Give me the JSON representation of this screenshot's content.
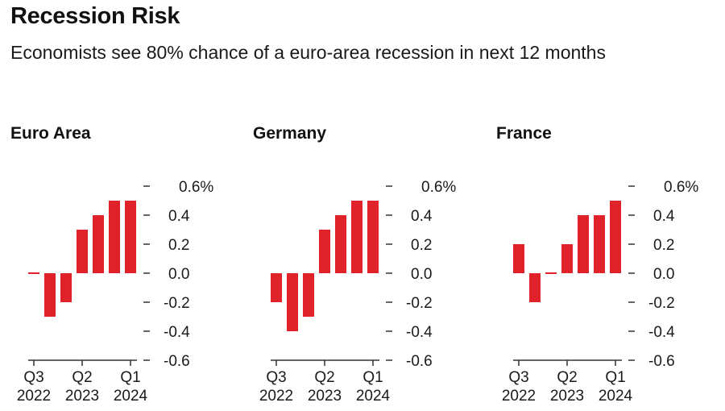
{
  "header": {
    "title": "Recession Risk",
    "subtitle": "Economists see 80% chance of a euro-area recession in next 12 months"
  },
  "colors": {
    "bar": "#e0232b",
    "axis": "#333333",
    "text": "#1a1a1a"
  },
  "chart_data": [
    {
      "type": "bar",
      "title": "Euro Area",
      "categories": [
        "Q3 2022",
        "Q4 2022",
        "Q1 2023",
        "Q2 2023",
        "Q3 2023",
        "Q4 2023",
        "Q1 2024"
      ],
      "values": [
        0.0,
        -0.3,
        -0.2,
        0.3,
        0.4,
        0.5,
        0.5
      ],
      "x_tick_labels": [
        {
          "index": 0,
          "line1": "Q3",
          "line2": "2022"
        },
        {
          "index": 3,
          "line1": "Q2",
          "line2": "2023"
        },
        {
          "index": 6,
          "line1": "Q1",
          "line2": "2024"
        }
      ],
      "y_ticks": [
        0.6,
        0.4,
        0.2,
        0.0,
        -0.2,
        -0.4,
        -0.6
      ],
      "y_tick_labels": [
        "0.6%",
        "0.4",
        "0.2",
        "0.0",
        "-0.2",
        "-0.4",
        "-0.6"
      ],
      "ylim": [
        -0.6,
        0.6
      ],
      "xlabel": "",
      "ylabel": "",
      "grid": false,
      "y_axis_side": "right",
      "unit": "%"
    },
    {
      "type": "bar",
      "title": "Germany",
      "categories": [
        "Q3 2022",
        "Q4 2022",
        "Q1 2023",
        "Q2 2023",
        "Q3 2023",
        "Q4 2023",
        "Q1 2024"
      ],
      "values": [
        -0.2,
        -0.4,
        -0.3,
        0.3,
        0.4,
        0.5,
        0.5
      ],
      "x_tick_labels": [
        {
          "index": 0,
          "line1": "Q3",
          "line2": "2022"
        },
        {
          "index": 3,
          "line1": "Q2",
          "line2": "2023"
        },
        {
          "index": 6,
          "line1": "Q1",
          "line2": "2024"
        }
      ],
      "y_ticks": [
        0.6,
        0.4,
        0.2,
        0.0,
        -0.2,
        -0.4,
        -0.6
      ],
      "y_tick_labels": [
        "0.6%",
        "0.4",
        "0.2",
        "0.0",
        "-0.2",
        "-0.4",
        "-0.6"
      ],
      "ylim": [
        -0.6,
        0.6
      ],
      "xlabel": "",
      "ylabel": "",
      "grid": false,
      "y_axis_side": "right",
      "unit": "%"
    },
    {
      "type": "bar",
      "title": "France",
      "categories": [
        "Q3 2022",
        "Q4 2022",
        "Q1 2023",
        "Q2 2023",
        "Q3 2023",
        "Q4 2023",
        "Q1 2024"
      ],
      "values": [
        0.2,
        -0.2,
        0.0,
        0.2,
        0.4,
        0.4,
        0.5
      ],
      "x_tick_labels": [
        {
          "index": 0,
          "line1": "Q3",
          "line2": "2022"
        },
        {
          "index": 3,
          "line1": "Q2",
          "line2": "2023"
        },
        {
          "index": 6,
          "line1": "Q1",
          "line2": "2024"
        }
      ],
      "y_ticks": [
        0.6,
        0.4,
        0.2,
        0.0,
        -0.2,
        -0.4,
        -0.6
      ],
      "y_tick_labels": [
        "0.6%",
        "0.4",
        "0.2",
        "0.0",
        "-0.2",
        "-0.4",
        "-0.6"
      ],
      "ylim": [
        -0.6,
        0.6
      ],
      "xlabel": "",
      "ylabel": "",
      "grid": false,
      "y_axis_side": "right",
      "unit": "%"
    }
  ]
}
